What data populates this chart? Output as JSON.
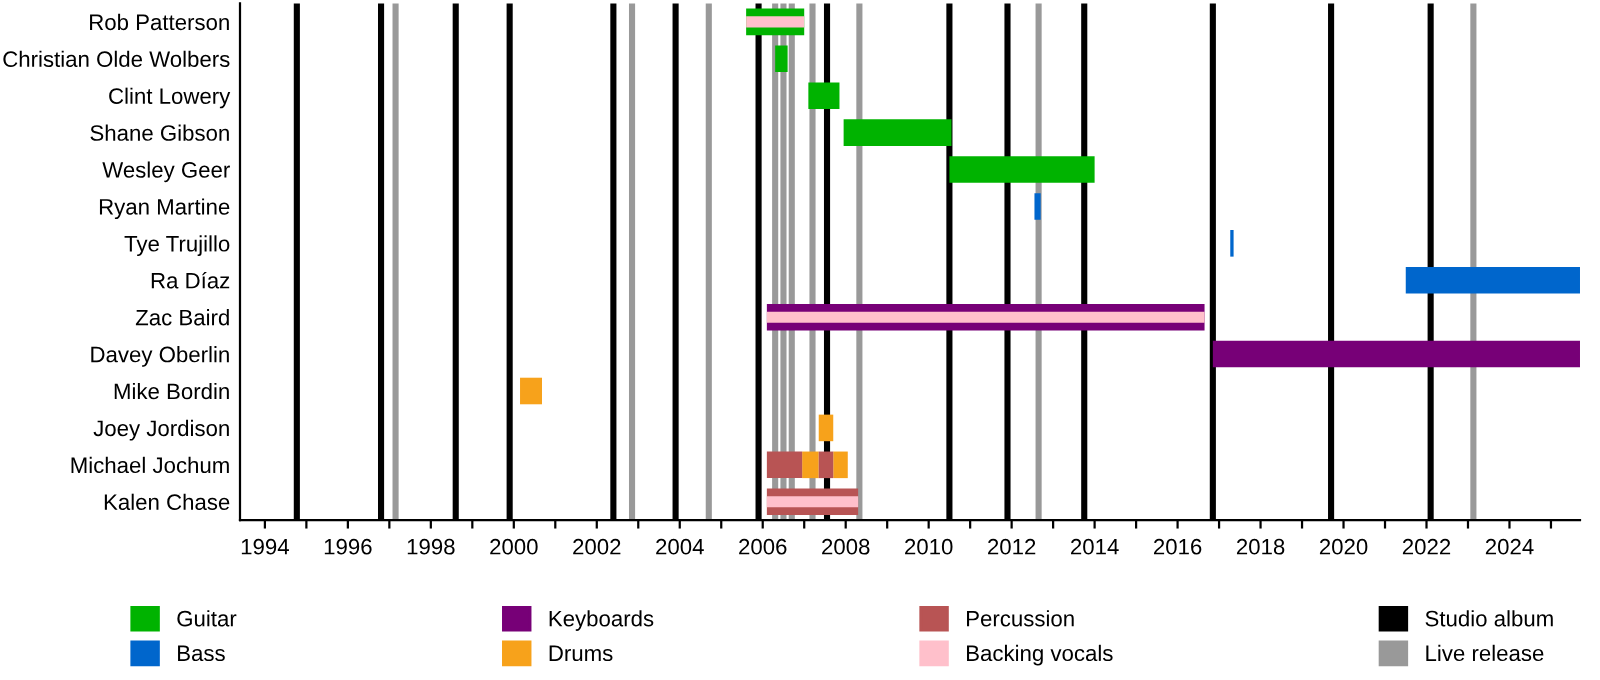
{
  "chart_data": {
    "type": "bar",
    "orientation": "horizontal",
    "categories": [
      "Rob Patterson",
      "Christian Olde Wolbers",
      "Clint Lowery",
      "Shane Gibson",
      "Wesley Geer",
      "Ryan Martine",
      "Tye Trujillo",
      "Ra Díaz",
      "Zac Baird",
      "Davey Oberlin",
      "Mike Bordin",
      "Joey Jordison",
      "Michael Jochum",
      "Kalen Chase"
    ],
    "series": [
      {
        "name": "Guitar",
        "color": "#00b300",
        "base": [
          2005.6,
          2006.3,
          2007.1,
          2007.95,
          2010.5,
          null,
          null,
          null,
          null,
          null,
          null,
          null,
          null,
          null
        ],
        "values": [
          1.4,
          0.3,
          0.75,
          2.6,
          3.5,
          null,
          null,
          null,
          null,
          null,
          null,
          null,
          null,
          null
        ]
      },
      {
        "name": "Bass",
        "color": "#0066cc",
        "base": [
          null,
          null,
          null,
          null,
          null,
          2012.55,
          2017.27,
          2021.5,
          null,
          null,
          null,
          null,
          null,
          null
        ],
        "values": [
          null,
          null,
          null,
          null,
          null,
          0.15,
          0.08,
          4.2,
          null,
          null,
          null,
          null,
          null,
          null
        ]
      },
      {
        "name": "Keyboards",
        "color": "#770077",
        "base": [
          null,
          null,
          null,
          null,
          null,
          null,
          null,
          null,
          2006.1,
          2016.85,
          null,
          null,
          null,
          null
        ],
        "values": [
          null,
          null,
          null,
          null,
          null,
          null,
          null,
          null,
          10.55,
          8.85,
          null,
          null,
          null,
          null
        ]
      },
      {
        "name": "Drums",
        "color": "#f7a21b",
        "base": [
          null,
          null,
          null,
          null,
          null,
          null,
          null,
          null,
          null,
          null,
          2000.15,
          2007.35,
          2006.95,
          null
        ],
        "values": [
          null,
          null,
          null,
          null,
          null,
          null,
          null,
          null,
          null,
          null,
          0.53,
          0.35,
          0.4,
          null
        ]
      },
      {
        "color": "#f7a21b",
        "base": [
          null,
          null,
          null,
          null,
          null,
          null,
          null,
          null,
          null,
          null,
          null,
          null,
          2007.7,
          null
        ],
        "values": [
          null,
          null,
          null,
          null,
          null,
          null,
          null,
          null,
          null,
          null,
          null,
          null,
          0.35,
          null
        ]
      },
      {
        "name": "Percussion",
        "color": "#b85454",
        "base": [
          null,
          null,
          null,
          null,
          null,
          null,
          null,
          null,
          null,
          null,
          null,
          null,
          2006.1,
          2006.1
        ],
        "values": [
          null,
          null,
          null,
          null,
          null,
          null,
          null,
          null,
          null,
          null,
          null,
          null,
          0.85,
          2.2
        ]
      },
      {
        "color": "#b85454",
        "base": [
          null,
          null,
          null,
          null,
          null,
          null,
          null,
          null,
          null,
          null,
          null,
          null,
          2007.35,
          null
        ],
        "values": [
          null,
          null,
          null,
          null,
          null,
          null,
          null,
          null,
          null,
          null,
          null,
          null,
          0.35,
          null
        ]
      },
      {
        "name": "Backing vocals",
        "color": "#ffc0cb",
        "base": [
          2005.6,
          null,
          null,
          null,
          null,
          null,
          null,
          null,
          2006.1,
          null,
          null,
          null,
          null,
          2006.1
        ],
        "values": [
          1.4,
          null,
          null,
          null,
          null,
          null,
          null,
          null,
          10.55,
          null,
          null,
          null,
          null,
          2.2
        ]
      }
    ],
    "xlim": [
      1993.4,
      2025.7
    ],
    "xticks": [
      1994,
      {
        "value": 1995,
        "label": null
      },
      1996,
      {
        "value": 1997,
        "label": null
      },
      1998,
      {
        "value": 1999,
        "label": null
      },
      2000,
      {
        "value": 2001,
        "label": null
      },
      2002,
      {
        "value": 2003,
        "label": null
      },
      2004,
      {
        "value": 2005,
        "label": null
      },
      2006,
      {
        "value": 2007,
        "label": null
      },
      2008,
      {
        "value": 2009,
        "label": null
      },
      2010,
      {
        "value": 2011,
        "label": null
      },
      2012,
      {
        "value": 2013,
        "label": null
      },
      2014,
      {
        "value": 2015,
        "label": null
      },
      2016,
      {
        "value": 2017,
        "label": null
      },
      2018,
      {
        "value": 2019,
        "label": null
      },
      2020,
      {
        "value": 2021,
        "label": null
      },
      2022,
      {
        "value": 2023,
        "label": null
      },
      2024,
      {
        "value": 2025,
        "label": null
      }
    ],
    "ref_lines": [
      {
        "axis": "x",
        "value": 1994.77,
        "label": "Studio album",
        "color": "#000000"
      },
      {
        "axis": "x",
        "value": 1996.8,
        "color": "#000000"
      },
      {
        "axis": "x",
        "value": 1998.6,
        "color": "#000000"
      },
      {
        "axis": "x",
        "value": 1999.9,
        "color": "#000000"
      },
      {
        "axis": "x",
        "value": 2002.4,
        "color": "#000000"
      },
      {
        "axis": "x",
        "value": 2003.9,
        "color": "#000000"
      },
      {
        "axis": "x",
        "value": 2005.9,
        "color": "#000000"
      },
      {
        "axis": "x",
        "value": 2007.55,
        "color": "#000000"
      },
      {
        "axis": "x",
        "value": 2010.5,
        "color": "#000000"
      },
      {
        "axis": "x",
        "value": 2011.9,
        "color": "#000000"
      },
      {
        "axis": "x",
        "value": 2013.75,
        "color": "#000000"
      },
      {
        "axis": "x",
        "value": 2016.85,
        "color": "#000000"
      },
      {
        "axis": "x",
        "value": 2019.7,
        "color": "#000000"
      },
      {
        "axis": "x",
        "value": 2022.1,
        "color": "#000000"
      },
      {
        "axis": "x",
        "value": 1997.15,
        "label": "Live release",
        "color": "#999999"
      },
      {
        "axis": "x",
        "value": 2002.85,
        "color": "#999999"
      },
      {
        "axis": "x",
        "value": 2004.7,
        "color": "#999999"
      },
      {
        "axis": "x",
        "value": 2006.3,
        "color": "#999999"
      },
      {
        "axis": "x",
        "value": 2006.5,
        "color": "#999999"
      },
      {
        "axis": "x",
        "value": 2006.7,
        "color": "#999999"
      },
      {
        "axis": "x",
        "value": 2007.2,
        "color": "#999999"
      },
      {
        "axis": "x",
        "value": 2008.33,
        "color": "#999999"
      },
      {
        "axis": "x",
        "value": 2012.65,
        "color": "#999999"
      },
      {
        "axis": "x",
        "value": 2023.13,
        "color": "#999999"
      }
    ],
    "legend": "bottom",
    "grid": false
  }
}
